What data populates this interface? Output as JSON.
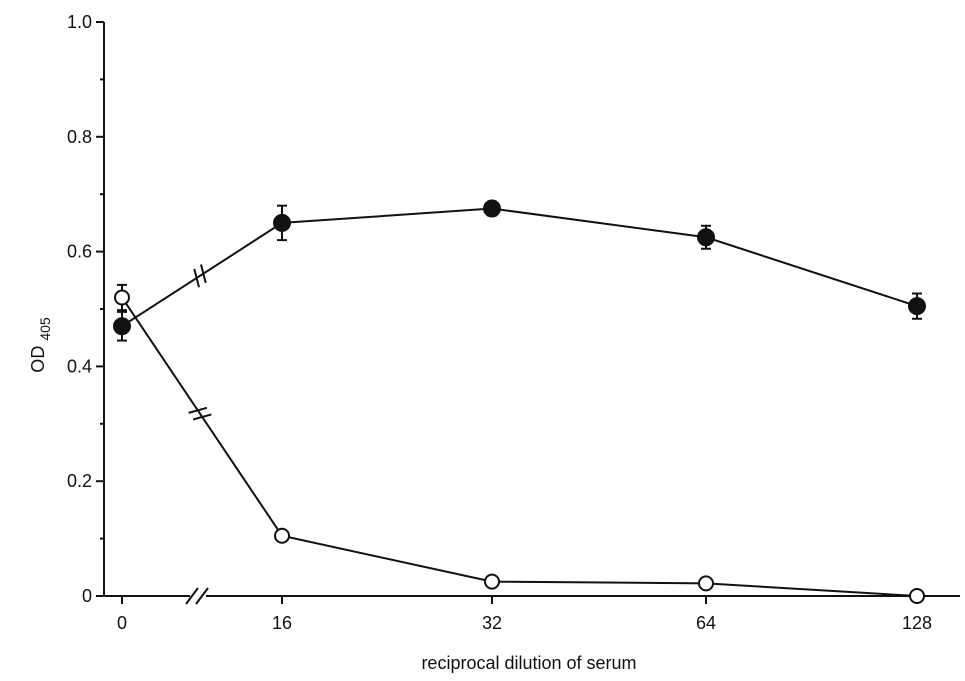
{
  "chart_data": {
    "type": "line",
    "x": [
      "0",
      "16",
      "32",
      "64",
      "128"
    ],
    "ylabel_main": "OD",
    "ylabel_sub": "405",
    "xlabel": "reciprocal dilution of serum",
    "ylim": [
      0,
      1.0
    ],
    "yticks": [
      "0",
      "0.2",
      "0.4",
      "0.6",
      "0.8",
      "1.0"
    ],
    "y_tick_values": [
      0,
      0.2,
      0.4,
      0.6,
      0.8,
      1.0
    ],
    "axis_break": "between 0 and 16",
    "grid": false,
    "series": [
      {
        "marker": "filled-circle",
        "color": "#111111",
        "values": [
          0.47,
          0.65,
          0.675,
          0.625,
          0.505
        ],
        "errors": [
          0.025,
          0.03,
          0.012,
          0.02,
          0.022
        ]
      },
      {
        "marker": "open-circle",
        "color": "#111111",
        "values": [
          0.52,
          0.105,
          0.025,
          0.022,
          0.0
        ],
        "errors": [
          0.022,
          0.008,
          0.0,
          0.0,
          0.0
        ]
      }
    ]
  }
}
